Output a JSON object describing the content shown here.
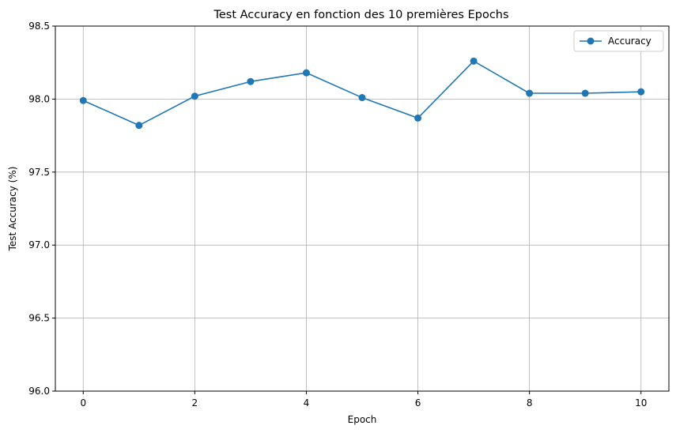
{
  "chart_data": {
    "type": "line",
    "title": "Test Accuracy en fonction des 10 premières Epochs",
    "xlabel": "Epoch",
    "ylabel": "Test Accuracy (%)",
    "xlim": [
      -0.5,
      10.5
    ],
    "ylim": [
      96.0,
      98.5
    ],
    "xticks": [
      0,
      2,
      4,
      6,
      8,
      10
    ],
    "xtick_labels": [
      "0",
      "2",
      "4",
      "6",
      "8",
      "10"
    ],
    "yticks": [
      96.0,
      96.5,
      97.0,
      97.5,
      98.0,
      98.5
    ],
    "ytick_labels": [
      "96.0",
      "96.5",
      "97.0",
      "97.5",
      "98.0",
      "98.5"
    ],
    "grid": true,
    "legend_position": "top-right",
    "series": [
      {
        "name": "Accuracy",
        "color": "#1f77b4",
        "marker": "circle",
        "x": [
          0,
          1,
          2,
          3,
          4,
          5,
          6,
          7,
          8,
          9,
          10
        ],
        "y": [
          97.99,
          97.82,
          98.02,
          98.12,
          98.18,
          98.01,
          97.87,
          98.26,
          98.04,
          98.04,
          98.05
        ]
      }
    ]
  }
}
